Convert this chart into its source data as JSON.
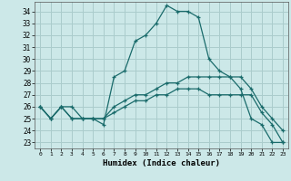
{
  "title": "",
  "xlabel": "Humidex (Indice chaleur)",
  "background_color": "#cce8e8",
  "grid_color": "#aacccc",
  "line_color": "#1a6b6b",
  "xlim": [
    -0.5,
    23.5
  ],
  "ylim": [
    22.5,
    34.8
  ],
  "yticks": [
    23,
    24,
    25,
    26,
    27,
    28,
    29,
    30,
    31,
    32,
    33,
    34
  ],
  "xticks": [
    0,
    1,
    2,
    3,
    4,
    5,
    6,
    7,
    8,
    9,
    10,
    11,
    12,
    13,
    14,
    15,
    16,
    17,
    18,
    19,
    20,
    21,
    22,
    23
  ],
  "lines": [
    {
      "x": [
        0,
        1,
        2,
        3,
        4,
        5,
        6,
        7,
        8,
        9,
        10,
        11,
        12,
        13,
        14,
        15,
        16,
        17,
        18,
        19,
        20,
        21,
        22,
        23
      ],
      "y": [
        26,
        25,
        26,
        26,
        25,
        25,
        24.5,
        28.5,
        29,
        31.5,
        32,
        33,
        34.5,
        34,
        34,
        33.5,
        30,
        29,
        28.5,
        27.5,
        25,
        24.5,
        23,
        23
      ]
    },
    {
      "x": [
        0,
        1,
        2,
        3,
        4,
        5,
        6,
        7,
        8,
        9,
        10,
        11,
        12,
        13,
        14,
        15,
        16,
        17,
        18,
        19,
        20,
        21,
        22,
        23
      ],
      "y": [
        26,
        25,
        26,
        25,
        25,
        25,
        25,
        26,
        26.5,
        27,
        27,
        27.5,
        28,
        28,
        28.5,
        28.5,
        28.5,
        28.5,
        28.5,
        28.5,
        27.5,
        26,
        25,
        24
      ]
    },
    {
      "x": [
        0,
        1,
        2,
        3,
        4,
        5,
        6,
        7,
        8,
        9,
        10,
        11,
        12,
        13,
        14,
        15,
        16,
        17,
        18,
        19,
        20,
        21,
        22,
        23
      ],
      "y": [
        26,
        25,
        26,
        25,
        25,
        25,
        25,
        25.5,
        26,
        26.5,
        26.5,
        27,
        27,
        27.5,
        27.5,
        27.5,
        27,
        27,
        27,
        27,
        27,
        25.5,
        24.5,
        23
      ]
    }
  ]
}
